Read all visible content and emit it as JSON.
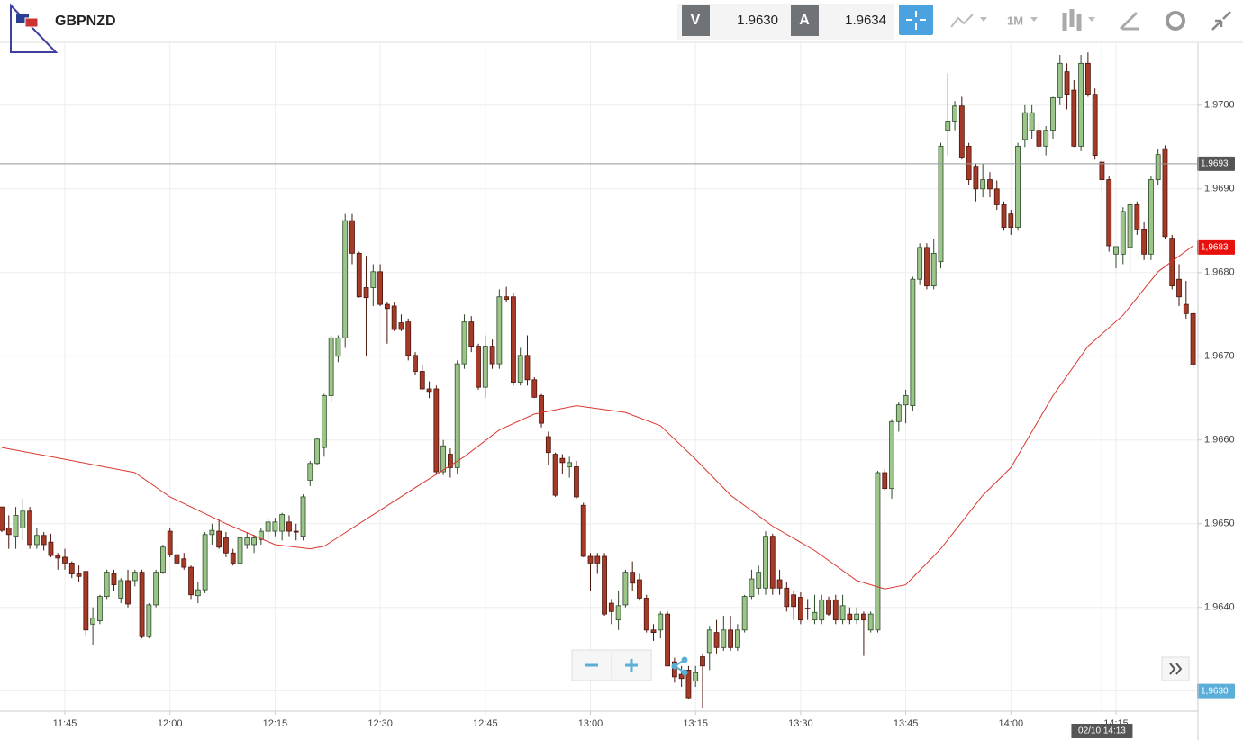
{
  "header": {
    "symbol": "GBPNZD",
    "sell_label": "V",
    "sell_price": "1.9630",
    "buy_label": "A",
    "buy_price": "1.9634",
    "timeframe": "1M"
  },
  "chart_data": {
    "type": "candlestick",
    "up_color": "#9cc58a",
    "down_color": "#a53a28",
    "candles": [
      [
        "11:36",
        1.9652,
        1.9652,
        1.9649,
        1.96492
      ],
      [
        "11:37",
        1.96495,
        1.9651,
        1.9647,
        1.96487
      ],
      [
        "11:38",
        1.96485,
        1.9652,
        1.9647,
        1.9651
      ],
      [
        "11:39",
        1.96495,
        1.9653,
        1.9648,
        1.96515
      ],
      [
        "11:40",
        1.96515,
        1.9652,
        1.9647,
        1.96475
      ],
      [
        "11:41",
        1.96475,
        1.96495,
        1.9647,
        1.96486
      ],
      [
        "11:42",
        1.96486,
        1.9649,
        1.96468,
        1.96475
      ],
      [
        "11:43",
        1.96478,
        1.96488,
        1.9646,
        1.96462
      ],
      [
        "11:44",
        1.96462,
        1.96465,
        1.96445,
        1.96459
      ],
      [
        "11:45",
        1.9646,
        1.9647,
        1.96445,
        1.96453
      ],
      [
        "11:46",
        1.96453,
        1.96455,
        1.96435,
        1.9644
      ],
      [
        "11:47",
        1.9644,
        1.9645,
        1.9643,
        1.96437
      ],
      [
        "11:48",
        1.96443,
        1.96443,
        1.96365,
        1.96373
      ],
      [
        "11:49",
        1.9638,
        1.964,
        1.96355,
        1.96387
      ],
      [
        "11:50",
        1.96384,
        1.96415,
        1.9638,
        1.96413
      ],
      [
        "11:51",
        1.96413,
        1.96445,
        1.9641,
        1.96442
      ],
      [
        "11:52",
        1.9644,
        1.96445,
        1.9642,
        1.96427
      ],
      [
        "11:53",
        1.96411,
        1.96435,
        1.96405,
        1.96432
      ],
      [
        "11:54",
        1.96432,
        1.96445,
        1.964,
        1.96404
      ],
      [
        "11:55",
        1.96432,
        1.96445,
        1.96425,
        1.96442
      ],
      [
        "11:56",
        1.96442,
        1.96445,
        1.96363,
        1.96365
      ],
      [
        "11:57",
        1.96365,
        1.96405,
        1.96363,
        1.96403
      ],
      [
        "11:58",
        1.96403,
        1.96445,
        1.964,
        1.96442
      ],
      [
        "11:59",
        1.96442,
        1.96475,
        1.9644,
        1.96472
      ],
      [
        "12:00",
        1.96491,
        1.96495,
        1.9646,
        1.96463
      ],
      [
        "12:01",
        1.96463,
        1.9648,
        1.9645,
        1.96453
      ],
      [
        "12:02",
        1.96458,
        1.96465,
        1.96445,
        1.96448
      ],
      [
        "12:03",
        1.96448,
        1.9645,
        1.9641,
        1.96415
      ],
      [
        "12:04",
        1.96414,
        1.9643,
        1.96405,
        1.96421
      ],
      [
        "12:05",
        1.96421,
        1.9649,
        1.96417,
        1.96487
      ],
      [
        "12:06",
        1.96487,
        1.965,
        1.96475,
        1.96492
      ],
      [
        "12:07",
        1.96491,
        1.96505,
        1.9647,
        1.96472
      ],
      [
        "12:08",
        1.96483,
        1.9649,
        1.9646,
        1.96465
      ],
      [
        "12:09",
        1.96465,
        1.9647,
        1.9645,
        1.96453
      ],
      [
        "12:10",
        1.96453,
        1.96487,
        1.9645,
        1.96483
      ],
      [
        "12:11",
        1.96475,
        1.9649,
        1.9647,
        1.96483
      ],
      [
        "12:12",
        1.96475,
        1.96487,
        1.96465,
        1.96483
      ],
      [
        "12:13",
        1.96481,
        1.96495,
        1.96475,
        1.96491
      ],
      [
        "12:14",
        1.96491,
        1.96507,
        1.9648,
        1.96502
      ],
      [
        "12:15",
        1.96491,
        1.96507,
        1.96485,
        1.96502
      ],
      [
        "12:16",
        1.96491,
        1.96513,
        1.9648,
        1.96511
      ],
      [
        "12:17",
        1.96502,
        1.9651,
        1.96485,
        1.96491
      ],
      [
        "12:18",
        1.96491,
        1.965,
        1.9648,
        1.9649
      ],
      [
        "12:19",
        1.96485,
        1.96535,
        1.9648,
        1.96532
      ],
      [
        "12:20",
        1.96552,
        1.96575,
        1.96545,
        1.96572
      ],
      [
        "12:21",
        1.96572,
        1.96603,
        1.9657,
        1.96601
      ],
      [
        "12:22",
        1.96591,
        1.96655,
        1.9658,
        1.96653
      ],
      [
        "12:23",
        1.96653,
        1.96725,
        1.96645,
        1.96722
      ],
      [
        "12:24",
        1.967,
        1.96725,
        1.96693,
        1.96722
      ],
      [
        "12:25",
        1.96722,
        1.9687,
        1.9671,
        1.96862
      ],
      [
        "12:26",
        1.96862,
        1.9687,
        1.9681,
        1.96823
      ],
      [
        "12:27",
        1.96823,
        1.96825,
        1.9677,
        1.96771
      ],
      [
        "12:28",
        1.96782,
        1.9682,
        1.967,
        1.9677
      ],
      [
        "12:29",
        1.96782,
        1.9681,
        1.9676,
        1.96801
      ],
      [
        "12:30",
        1.96801,
        1.9681,
        1.9676,
        1.96762
      ],
      [
        "12:31",
        1.96762,
        1.96765,
        1.96715,
        1.96757
      ],
      [
        "12:32",
        1.9676,
        1.96765,
        1.9673,
        1.96732
      ],
      [
        "12:33",
        1.9674,
        1.9675,
        1.9673,
        1.96732
      ],
      [
        "12:34",
        1.96741,
        1.96745,
        1.96695,
        1.96701
      ],
      [
        "12:35",
        1.96701,
        1.96705,
        1.96678,
        1.96682
      ],
      [
        "12:36",
        1.96682,
        1.9669,
        1.9666,
        1.96661
      ],
      [
        "12:37",
        1.96661,
        1.9667,
        1.9665,
        1.96658
      ],
      [
        "12:38",
        1.96661,
        1.96665,
        1.9656,
        1.96562
      ],
      [
        "12:39",
        1.96562,
        1.966,
        1.96558,
        1.96593
      ],
      [
        "12:40",
        1.96583,
        1.9659,
        1.96555,
        1.96567
      ],
      [
        "12:41",
        1.96567,
        1.96695,
        1.9656,
        1.96691
      ],
      [
        "12:42",
        1.96691,
        1.9675,
        1.96685,
        1.96741
      ],
      [
        "12:43",
        1.96741,
        1.96748,
        1.96705,
        1.96712
      ],
      [
        "12:44",
        1.96712,
        1.96715,
        1.9666,
        1.96663
      ],
      [
        "12:45",
        1.96663,
        1.96725,
        1.9665,
        1.96712
      ],
      [
        "12:46",
        1.96712,
        1.9672,
        1.96685,
        1.96691
      ],
      [
        "12:47",
        1.96691,
        1.9678,
        1.96685,
        1.96771
      ],
      [
        "12:48",
        1.96771,
        1.96783,
        1.96765,
        1.96768
      ],
      [
        "12:49",
        1.96771,
        1.96775,
        1.96665,
        1.96669
      ],
      [
        "12:50",
        1.96669,
        1.9671,
        1.96665,
        1.96701
      ],
      [
        "12:51",
        1.96701,
        1.96725,
        1.96665,
        1.96672
      ],
      [
        "12:52",
        1.96672,
        1.96675,
        1.9665,
        1.96651
      ],
      [
        "12:53",
        1.96653,
        1.96655,
        1.96615,
        1.9662
      ],
      [
        "12:54",
        1.96604,
        1.9661,
        1.9657,
        1.96585
      ],
      [
        "12:55",
        1.96583,
        1.96585,
        1.96532,
        1.96534
      ],
      [
        "12:56",
        1.96578,
        1.96583,
        1.9656,
        1.96573
      ],
      [
        "12:57",
        1.96568,
        1.9658,
        1.96555,
        1.96573
      ],
      [
        "12:58",
        1.96568,
        1.96575,
        1.9653,
        1.96532
      ],
      [
        "12:59",
        1.96522,
        1.96525,
        1.9646,
        1.96461
      ],
      [
        "13:00",
        1.96461,
        1.96465,
        1.9642,
        1.96453
      ],
      [
        "13:01",
        1.96461,
        1.96465,
        1.9644,
        1.96453
      ],
      [
        "13:02",
        1.96461,
        1.96465,
        1.9639,
        1.96392
      ],
      [
        "13:03",
        1.96405,
        1.9641,
        1.9638,
        1.96395
      ],
      [
        "13:04",
        1.96385,
        1.9642,
        1.96373,
        1.96402
      ],
      [
        "13:05",
        1.96403,
        1.96445,
        1.964,
        1.96442
      ],
      [
        "13:06",
        1.96442,
        1.96455,
        1.9642,
        1.96429
      ],
      [
        "13:07",
        1.96433,
        1.9644,
        1.96408,
        1.96411
      ],
      [
        "13:08",
        1.96411,
        1.96415,
        1.9637,
        1.96373
      ],
      [
        "13:09",
        1.96373,
        1.9638,
        1.9636,
        1.9637
      ],
      [
        "13:10",
        1.96373,
        1.96395,
        1.96363,
        1.96392
      ],
      [
        "13:11",
        1.96392,
        1.96395,
        1.9633,
        1.9633
      ],
      [
        "13:12",
        1.96335,
        1.9634,
        1.9631,
        1.96317
      ],
      [
        "13:13",
        1.9632,
        1.9633,
        1.96305,
        1.96315
      ],
      [
        "13:14",
        1.96325,
        1.9633,
        1.9629,
        1.96292
      ],
      [
        "13:15",
        1.96312,
        1.9633,
        1.96305,
        1.96322
      ],
      [
        "13:16",
        1.96341,
        1.96345,
        1.9628,
        1.9633
      ],
      [
        "13:17",
        1.96346,
        1.96378,
        1.96325,
        1.96373
      ],
      [
        "13:18",
        1.9637,
        1.96385,
        1.96345,
        1.96352
      ],
      [
        "13:19",
        1.96352,
        1.9639,
        1.96348,
        1.96373
      ],
      [
        "13:20",
        1.96373,
        1.9639,
        1.96348,
        1.96352
      ],
      [
        "13:21",
        1.96352,
        1.9638,
        1.96348,
        1.96373
      ],
      [
        "13:22",
        1.96373,
        1.96415,
        1.9637,
        1.96413
      ],
      [
        "13:23",
        1.96413,
        1.96445,
        1.9641,
        1.96434
      ],
      [
        "13:24",
        1.96423,
        1.9645,
        1.96415,
        1.96442
      ],
      [
        "13:25",
        1.96423,
        1.96491,
        1.96415,
        1.96485
      ],
      [
        "13:26",
        1.96485,
        1.96488,
        1.96415,
        1.96423
      ],
      [
        "13:27",
        1.96433,
        1.96445,
        1.96415,
        1.96423
      ],
      [
        "13:28",
        1.96423,
        1.9643,
        1.96395,
        1.96401
      ],
      [
        "13:29",
        1.96415,
        1.9642,
        1.96385,
        1.96401
      ],
      [
        "13:30",
        1.96412,
        1.96418,
        1.9638,
        1.96385
      ],
      [
        "13:31",
        1.96399,
        1.9641,
        1.96385,
        1.96398
      ],
      [
        "13:32",
        1.96385,
        1.96415,
        1.9638,
        1.96394
      ],
      [
        "13:33",
        1.96385,
        1.96415,
        1.9638,
        1.96409
      ],
      [
        "13:34",
        1.96409,
        1.96413,
        1.9639,
        1.96392
      ],
      [
        "13:35",
        1.96409,
        1.96415,
        1.9638,
        1.96385
      ],
      [
        "13:36",
        1.96385,
        1.96415,
        1.9638,
        1.96402
      ],
      [
        "13:37",
        1.96392,
        1.964,
        1.9638,
        1.96385
      ],
      [
        "13:38",
        1.96385,
        1.964,
        1.9638,
        1.96392
      ],
      [
        "13:39",
        1.96392,
        1.96395,
        1.96342,
        1.96385
      ],
      [
        "13:40",
        1.96373,
        1.96395,
        1.9637,
        1.96392
      ],
      [
        "13:41",
        1.96373,
        1.96563,
        1.9637,
        1.96561
      ],
      [
        "13:42",
        1.96561,
        1.96565,
        1.9654,
        1.96542
      ],
      [
        "13:43",
        1.96542,
        1.96625,
        1.9653,
        1.96622
      ],
      [
        "13:44",
        1.96622,
        1.96645,
        1.9661,
        1.96642
      ],
      [
        "13:45",
        1.96642,
        1.9666,
        1.9662,
        1.96653
      ],
      [
        "13:46",
        1.96641,
        1.96795,
        1.96635,
        1.96792
      ],
      [
        "13:47",
        1.96792,
        1.96835,
        1.96785,
        1.9683
      ],
      [
        "13:48",
        1.9683,
        1.96835,
        1.9678,
        1.96784
      ],
      [
        "13:49",
        1.96784,
        1.9684,
        1.9678,
        1.96823
      ],
      [
        "13:50",
        1.96813,
        1.96955,
        1.96805,
        1.96951
      ],
      [
        "13:51",
        1.9697,
        1.97038,
        1.9694,
        1.96981
      ],
      [
        "13:52",
        1.96981,
        1.97005,
        1.9697,
        1.96999
      ],
      [
        "13:53",
        1.96999,
        1.9701,
        1.96935,
        1.96938
      ],
      [
        "13:54",
        1.96951,
        1.96955,
        1.96905,
        1.96911
      ],
      [
        "13:55",
        1.96927,
        1.9693,
        1.96885,
        1.969
      ],
      [
        "13:56",
        1.969,
        1.9693,
        1.9689,
        1.96911
      ],
      [
        "13:57",
        1.96911,
        1.9692,
        1.9689,
        1.969
      ],
      [
        "13:58",
        1.969,
        1.9691,
        1.96875,
        1.96881
      ],
      [
        "13:59",
        1.96881,
        1.96885,
        1.9685,
        1.96854
      ],
      [
        "14:00",
        1.9687,
        1.96875,
        1.96845,
        1.96854
      ],
      [
        "14:01",
        1.96854,
        1.96955,
        1.9685,
        1.96951
      ],
      [
        "14:02",
        1.96959,
        1.97,
        1.9695,
        1.96991
      ],
      [
        "14:03",
        1.9697,
        1.97,
        1.9696,
        1.96991
      ],
      [
        "14:04",
        1.9697,
        1.9698,
        1.96945,
        1.96951
      ],
      [
        "14:05",
        1.96951,
        1.96975,
        1.9694,
        1.9697
      ],
      [
        "14:06",
        1.9697,
        1.9701,
        1.9696,
        1.97009
      ],
      [
        "14:07",
        1.97009,
        1.9706,
        1.97,
        1.9705
      ],
      [
        "14:08",
        1.9704,
        1.9705,
        1.96995,
        1.97013
      ],
      [
        "14:09",
        1.97018,
        1.9703,
        1.9695,
        1.96951
      ],
      [
        "14:10",
        1.96951,
        1.9706,
        1.96945,
        1.9705
      ],
      [
        "14:11",
        1.9705,
        1.97063,
        1.9701,
        1.97013
      ],
      [
        "14:12",
        1.97013,
        1.9702,
        1.96935,
        1.9694
      ],
      [
        "14:13",
        1.96932,
        1.96935,
        1.96895,
        1.96911
      ],
      [
        "14:14",
        1.96911,
        1.96915,
        1.96825,
        1.96832
      ],
      [
        "14:15",
        1.96822,
        1.9683,
        1.96805,
        1.96831
      ],
      [
        "14:16",
        1.96822,
        1.96878,
        1.9681,
        1.96873
      ],
      [
        "14:17",
        1.9683,
        1.96885,
        1.968,
        1.96881
      ],
      [
        "14:18",
        1.96881,
        1.96885,
        1.96845,
        1.96852
      ],
      [
        "14:19",
        1.96852,
        1.9686,
        1.96815,
        1.96822
      ],
      [
        "14:20",
        1.96822,
        1.96915,
        1.96815,
        1.96911
      ],
      [
        "14:21",
        1.96911,
        1.96948,
        1.96905,
        1.96941
      ],
      [
        "14:22",
        1.96948,
        1.96952,
        1.9684,
        1.96843
      ],
      [
        "14:23",
        1.96841,
        1.96845,
        1.9678,
        1.96784
      ],
      [
        "14:24",
        1.96792,
        1.9681,
        1.9676,
        1.96771
      ],
      [
        "14:25",
        1.96762,
        1.9679,
        1.96745,
        1.96751
      ],
      [
        "14:26",
        1.96751,
        1.96755,
        1.96685,
        1.9669
      ]
    ],
    "ma": {
      "color": "#d9382f",
      "x": [
        "11:36",
        "11:45",
        "11:55",
        "12:00",
        "12:08",
        "12:15",
        "12:20",
        "12:22",
        "12:27",
        "12:35",
        "12:42",
        "12:47",
        "12:52",
        "12:58",
        "13:05",
        "13:10",
        "13:15",
        "13:20",
        "13:26",
        "13:32",
        "13:38",
        "13:42",
        "13:45",
        "13:50",
        "13:56",
        "14:00",
        "14:06",
        "14:11",
        "14:16",
        "14:21",
        "14:26"
      ],
      "values": [
        1.96591,
        1.96577,
        1.96561,
        1.96532,
        1.965,
        1.96475,
        1.9647,
        1.96473,
        1.965,
        1.96543,
        1.9658,
        1.96612,
        1.96631,
        1.96641,
        1.96633,
        1.96617,
        1.96577,
        1.96534,
        1.96497,
        1.96468,
        1.96432,
        1.96422,
        1.96427,
        1.9647,
        1.96534,
        1.96567,
        1.96653,
        1.96712,
        1.96749,
        1.96801,
        1.96832
      ]
    },
    "ylim": [
      1.96276,
      1.97074
    ],
    "yticks": [
      {
        "value": 1.963,
        "label": "1,9630"
      },
      {
        "value": 1.964,
        "label": "1,9640"
      },
      {
        "value": 1.965,
        "label": "1,9650"
      },
      {
        "value": 1.966,
        "label": "1,9660"
      },
      {
        "value": 1.967,
        "label": "1,9670"
      },
      {
        "value": 1.968,
        "label": "1,9680"
      },
      {
        "value": 1.969,
        "label": "1,9690"
      },
      {
        "value": 1.97,
        "label": "1,9700"
      }
    ],
    "xticks": [
      "11:45",
      "12:00",
      "12:15",
      "12:30",
      "12:45",
      "13:00",
      "13:15",
      "13:30",
      "13:45",
      "14:00",
      "14:15"
    ],
    "grid": true,
    "price_markers": [
      {
        "value": 1.9693,
        "label": "1,9693",
        "color": "#555555"
      },
      {
        "value": 1.9683,
        "label": "1,9683",
        "color": "#e8100c"
      },
      {
        "value": 1.963,
        "label": "1,9630",
        "color": "#5aaed8"
      }
    ],
    "crosshair": {
      "x": "14:13",
      "label": "02/10 14:13"
    }
  }
}
